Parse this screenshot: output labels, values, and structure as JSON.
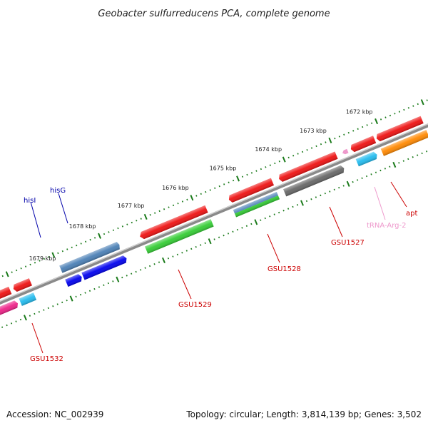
{
  "header": {
    "title": "Geobacter sulfurreducens PCA, complete genome"
  },
  "footer": {
    "accession": "Accession: NC_002939",
    "summary": "Topology: circular; Length: 3,814,139 bp; Genes: 3,502"
  },
  "ruler": {
    "tick_labels": [
      "1679 kbp",
      "1678 kbp",
      "1677 kbp",
      "1676 kbp",
      "1675 kbp",
      "1674 kbp",
      "1673 kbp",
      "1672 kbp"
    ]
  },
  "gene_labels": [
    {
      "name": "hisI",
      "text": "hisI",
      "color": "#0000aa"
    },
    {
      "name": "hisG",
      "text": "hisG",
      "color": "#0000aa"
    },
    {
      "name": "GSU1527",
      "text": "GSU1527",
      "color": "#cc0000"
    },
    {
      "name": "GSU1528",
      "text": "GSU1528",
      "color": "#cc0000"
    },
    {
      "name": "GSU1529",
      "text": "GSU1529",
      "color": "#cc0000"
    },
    {
      "name": "GSU1532",
      "text": "GSU1532",
      "color": "#cc0000"
    },
    {
      "name": "apt",
      "text": "apt",
      "color": "#cc0000"
    },
    {
      "name": "tRNA-Arg-2",
      "text": "tRNA-Arg-2",
      "color": "#ee99cc"
    }
  ],
  "colors": {
    "backbone": "#888888",
    "ruler_dot": "#1a7a1a",
    "red": "#ee1111",
    "blue_dark": "#0000ee",
    "steel_blue": "#4a7fb5",
    "green": "#33cc33",
    "gray": "#666666",
    "cyan": "#22bbee",
    "orange": "#ff8800",
    "magenta": "#ee2288",
    "pink": "#ee99cc"
  }
}
